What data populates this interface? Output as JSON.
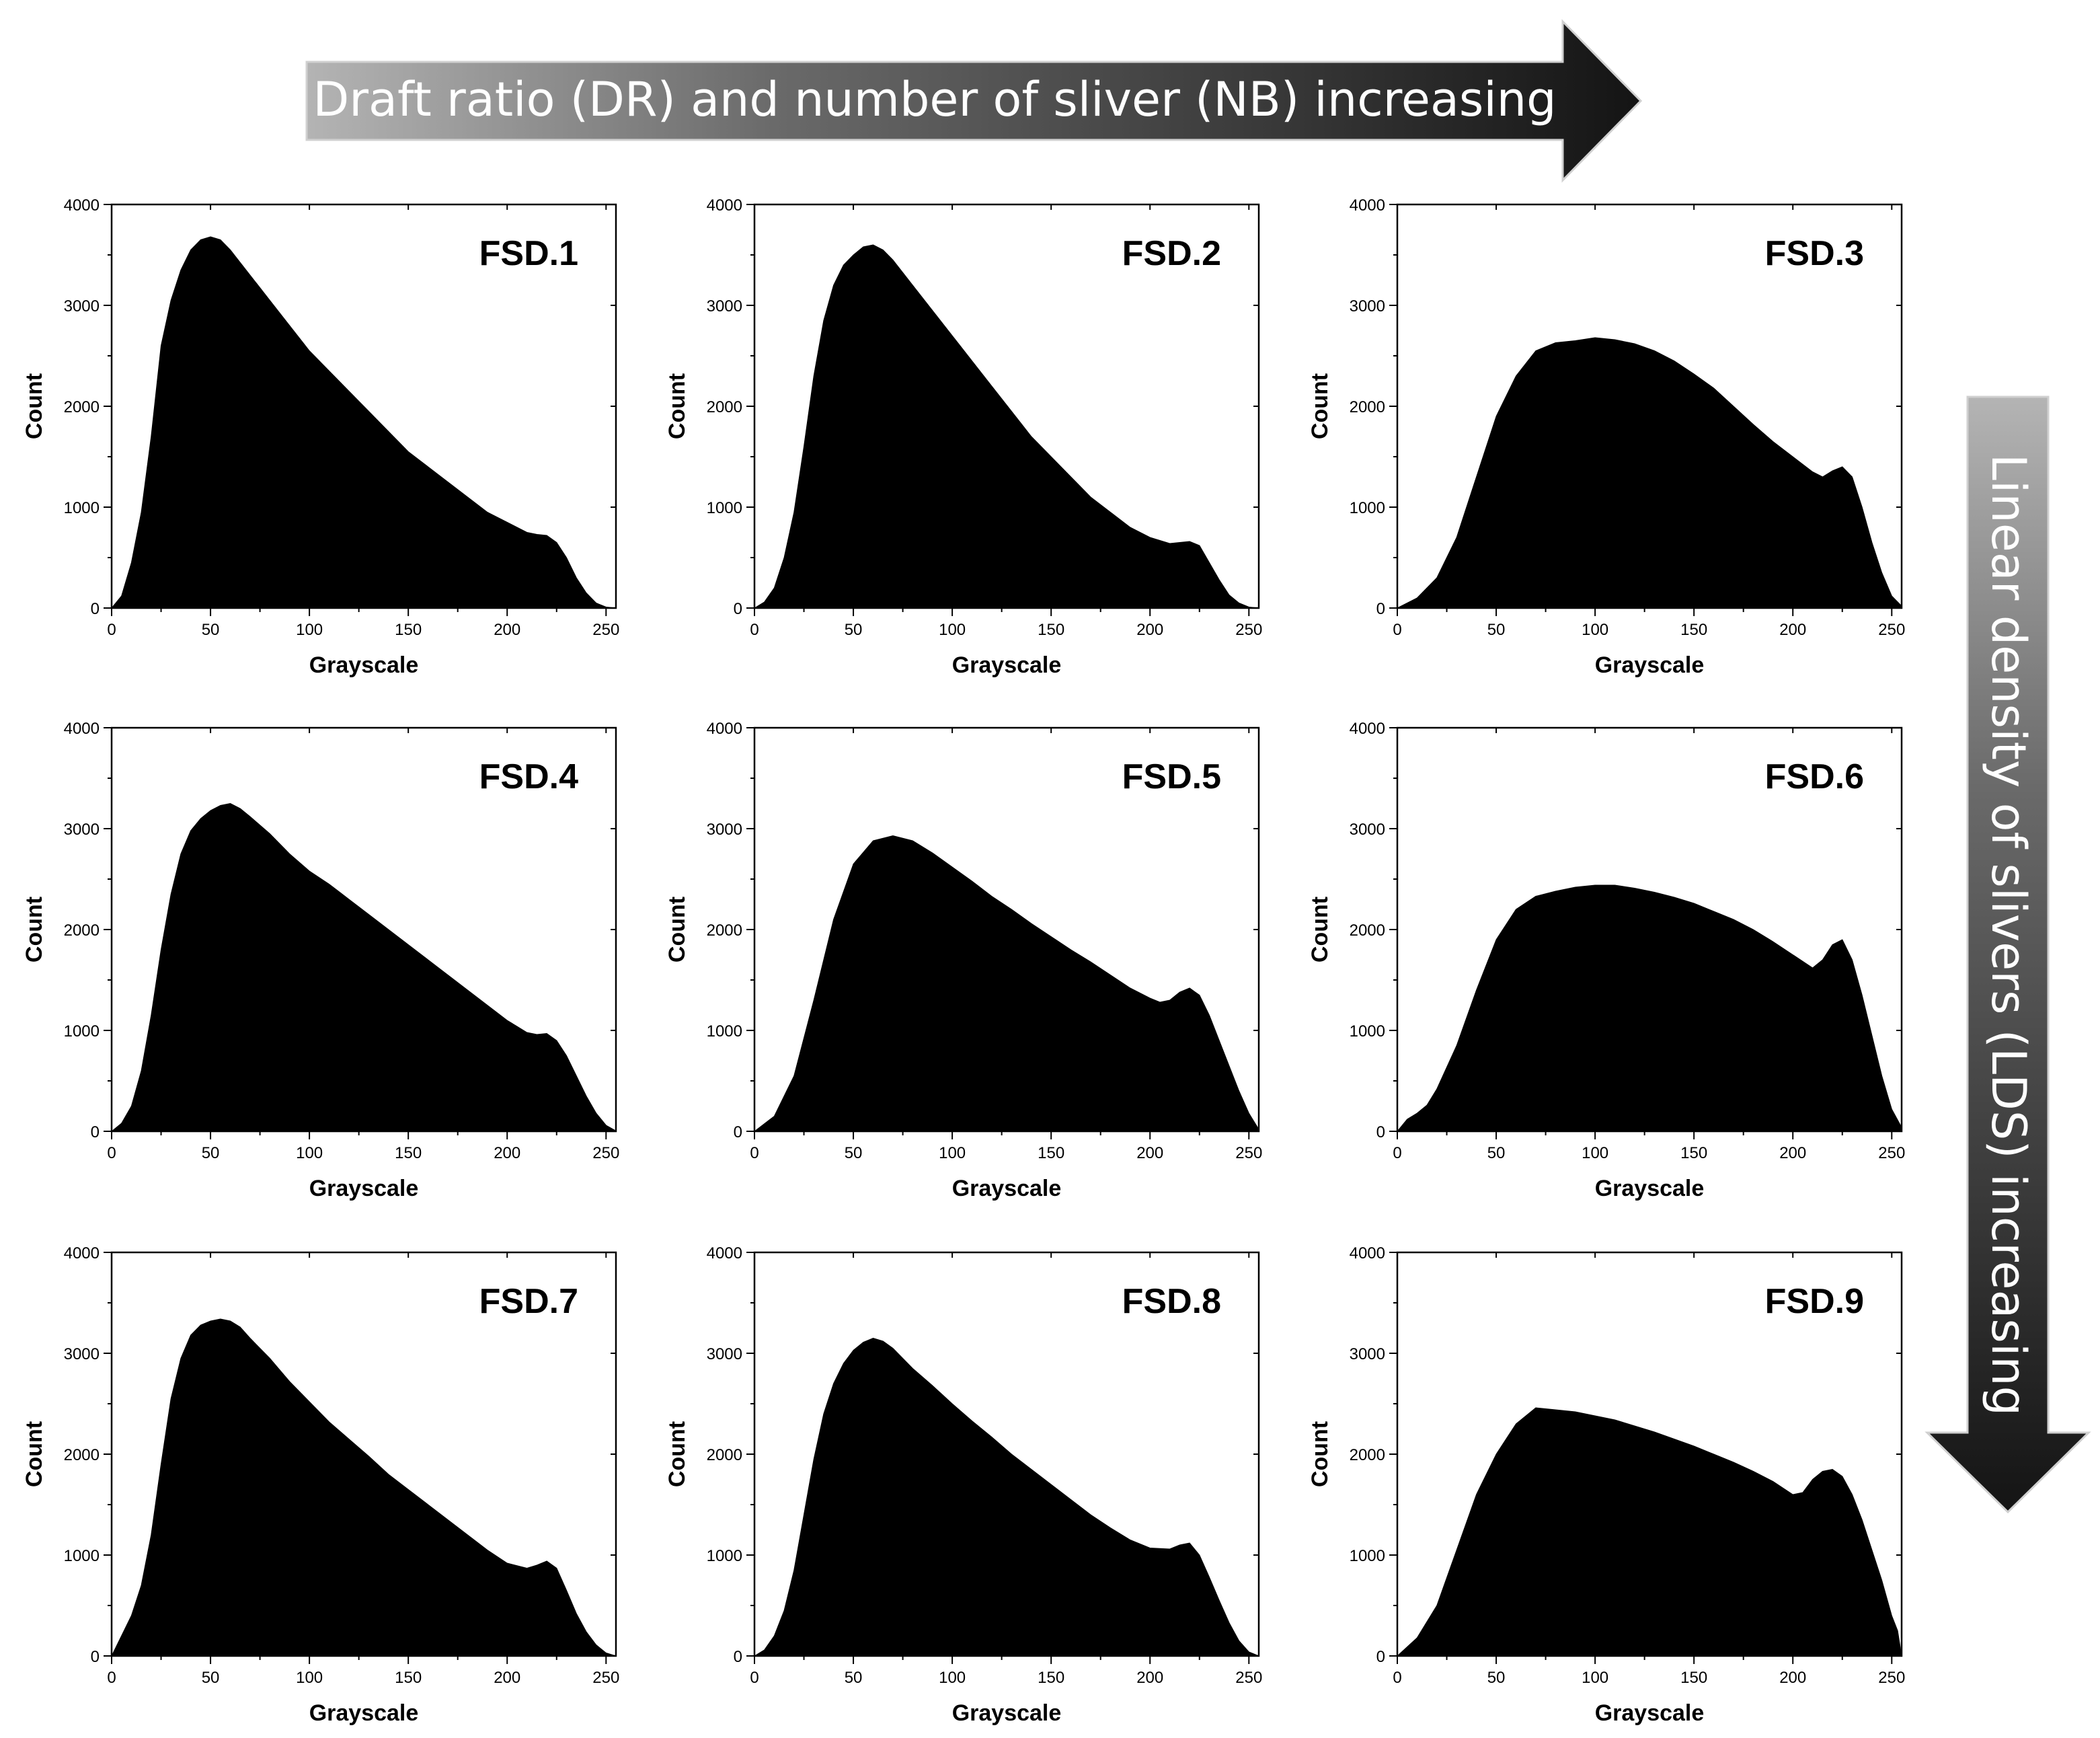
{
  "banner_top": {
    "text": "Draft ratio (DR) and number of sliver (NB) increasing"
  },
  "banner_right": {
    "text": "Linear density of slivers (LDS) increasing"
  },
  "colors": {
    "bars": "#000000",
    "arrow_dark": "#1a1a1a",
    "arrow_light": "#b4b4b4",
    "text": "#000000",
    "background": "#ffffff"
  },
  "chart_data": [
    {
      "type": "area",
      "title": "FSD.1",
      "xlabel": "Grayscale",
      "ylabel": "Count",
      "xlim": [
        0,
        255
      ],
      "ylim": [
        0,
        4000
      ],
      "xticks": [
        0,
        50,
        100,
        150,
        200,
        250
      ],
      "yticks": [
        0,
        1000,
        2000,
        3000,
        4000
      ],
      "grid": false,
      "x": [
        0,
        5,
        10,
        15,
        20,
        25,
        30,
        35,
        40,
        45,
        50,
        55,
        60,
        70,
        80,
        90,
        100,
        110,
        120,
        130,
        140,
        150,
        160,
        170,
        180,
        190,
        200,
        210,
        215,
        220,
        225,
        230,
        235,
        240,
        245,
        250,
        255
      ],
      "y": [
        0,
        120,
        450,
        950,
        1700,
        2600,
        3050,
        3350,
        3550,
        3650,
        3680,
        3650,
        3550,
        3300,
        3050,
        2800,
        2550,
        2350,
        2150,
        1950,
        1750,
        1550,
        1400,
        1250,
        1100,
        950,
        850,
        750,
        730,
        720,
        650,
        500,
        300,
        150,
        50,
        10,
        0
      ]
    },
    {
      "type": "area",
      "title": "FSD.2",
      "xlabel": "Grayscale",
      "ylabel": "Count",
      "xlim": [
        0,
        255
      ],
      "ylim": [
        0,
        4000
      ],
      "xticks": [
        0,
        50,
        100,
        150,
        200,
        250
      ],
      "yticks": [
        0,
        1000,
        2000,
        3000,
        4000
      ],
      "grid": false,
      "x": [
        0,
        5,
        10,
        15,
        20,
        25,
        30,
        35,
        40,
        45,
        50,
        55,
        60,
        65,
        70,
        80,
        90,
        100,
        110,
        120,
        130,
        140,
        150,
        160,
        170,
        180,
        190,
        200,
        210,
        220,
        225,
        230,
        235,
        240,
        245,
        250,
        255
      ],
      "y": [
        0,
        60,
        200,
        500,
        950,
        1600,
        2300,
        2850,
        3200,
        3400,
        3500,
        3580,
        3600,
        3550,
        3450,
        3200,
        2950,
        2700,
        2450,
        2200,
        1950,
        1700,
        1500,
        1300,
        1100,
        950,
        800,
        700,
        640,
        660,
        620,
        450,
        280,
        130,
        50,
        10,
        0
      ]
    },
    {
      "type": "area",
      "title": "FSD.3",
      "xlabel": "Grayscale",
      "ylabel": "Count",
      "xlim": [
        0,
        255
      ],
      "ylim": [
        0,
        4000
      ],
      "xticks": [
        0,
        50,
        100,
        150,
        200,
        250
      ],
      "yticks": [
        0,
        1000,
        2000,
        3000,
        4000
      ],
      "grid": false,
      "x": [
        0,
        10,
        20,
        30,
        40,
        50,
        60,
        70,
        80,
        90,
        100,
        110,
        120,
        130,
        140,
        150,
        160,
        170,
        180,
        190,
        200,
        210,
        215,
        220,
        225,
        230,
        235,
        240,
        245,
        250,
        255
      ],
      "y": [
        0,
        100,
        300,
        700,
        1300,
        1900,
        2300,
        2550,
        2630,
        2650,
        2680,
        2660,
        2620,
        2550,
        2450,
        2320,
        2180,
        2000,
        1820,
        1650,
        1500,
        1350,
        1300,
        1360,
        1400,
        1300,
        1000,
        650,
        350,
        120,
        20
      ]
    },
    {
      "type": "area",
      "title": "FSD.4",
      "xlabel": "Grayscale",
      "ylabel": "Count",
      "xlim": [
        0,
        255
      ],
      "ylim": [
        0,
        4000
      ],
      "xticks": [
        0,
        50,
        100,
        150,
        200,
        250
      ],
      "yticks": [
        0,
        1000,
        2000,
        3000,
        4000
      ],
      "grid": false,
      "x": [
        0,
        5,
        10,
        15,
        20,
        25,
        30,
        35,
        40,
        45,
        50,
        55,
        60,
        65,
        70,
        80,
        90,
        100,
        110,
        120,
        130,
        140,
        150,
        160,
        170,
        180,
        190,
        200,
        210,
        215,
        220,
        225,
        230,
        235,
        240,
        245,
        250,
        255
      ],
      "y": [
        0,
        80,
        250,
        600,
        1150,
        1800,
        2350,
        2750,
        2980,
        3100,
        3180,
        3230,
        3250,
        3200,
        3120,
        2950,
        2750,
        2580,
        2450,
        2300,
        2150,
        2000,
        1850,
        1700,
        1550,
        1400,
        1250,
        1100,
        980,
        960,
        970,
        900,
        750,
        550,
        350,
        180,
        60,
        5
      ]
    },
    {
      "type": "area",
      "title": "FSD.5",
      "xlabel": "Grayscale",
      "ylabel": "Count",
      "xlim": [
        0,
        255
      ],
      "ylim": [
        0,
        4000
      ],
      "xticks": [
        0,
        50,
        100,
        150,
        200,
        250
      ],
      "yticks": [
        0,
        1000,
        2000,
        3000,
        4000
      ],
      "grid": false,
      "x": [
        0,
        10,
        20,
        30,
        40,
        50,
        60,
        70,
        80,
        90,
        100,
        110,
        120,
        130,
        140,
        150,
        160,
        170,
        180,
        190,
        200,
        205,
        210,
        215,
        220,
        225,
        230,
        235,
        240,
        245,
        250,
        255
      ],
      "y": [
        0,
        150,
        550,
        1300,
        2100,
        2650,
        2880,
        2930,
        2880,
        2760,
        2620,
        2480,
        2330,
        2200,
        2060,
        1930,
        1800,
        1680,
        1550,
        1420,
        1320,
        1280,
        1300,
        1380,
        1420,
        1350,
        1150,
        900,
        650,
        400,
        180,
        20
      ]
    },
    {
      "type": "area",
      "title": "FSD.6",
      "xlabel": "Grayscale",
      "ylabel": "Count",
      "xlim": [
        0,
        255
      ],
      "ylim": [
        0,
        4000
      ],
      "xticks": [
        0,
        50,
        100,
        150,
        200,
        250
      ],
      "yticks": [
        0,
        1000,
        2000,
        3000,
        4000
      ],
      "grid": false,
      "x": [
        0,
        5,
        10,
        15,
        20,
        30,
        40,
        50,
        60,
        70,
        80,
        90,
        100,
        110,
        120,
        130,
        140,
        150,
        160,
        170,
        180,
        190,
        200,
        210,
        215,
        220,
        225,
        230,
        235,
        240,
        245,
        250,
        255
      ],
      "y": [
        0,
        120,
        180,
        260,
        420,
        850,
        1400,
        1900,
        2200,
        2330,
        2380,
        2420,
        2440,
        2440,
        2410,
        2370,
        2320,
        2260,
        2180,
        2100,
        2000,
        1880,
        1750,
        1620,
        1700,
        1850,
        1900,
        1700,
        1350,
        950,
        550,
        220,
        40
      ]
    },
    {
      "type": "area",
      "title": "FSD.7",
      "xlabel": "Grayscale",
      "ylabel": "Count",
      "xlim": [
        0,
        255
      ],
      "ylim": [
        0,
        4000
      ],
      "xticks": [
        0,
        50,
        100,
        150,
        200,
        250
      ],
      "yticks": [
        0,
        1000,
        2000,
        3000,
        4000
      ],
      "grid": false,
      "x": [
        0,
        5,
        10,
        15,
        20,
        25,
        30,
        35,
        40,
        45,
        50,
        55,
        60,
        65,
        70,
        80,
        90,
        100,
        110,
        120,
        130,
        140,
        150,
        160,
        170,
        180,
        190,
        200,
        210,
        215,
        220,
        225,
        230,
        235,
        240,
        245,
        250,
        255
      ],
      "y": [
        0,
        200,
        400,
        700,
        1200,
        1900,
        2550,
        2950,
        3180,
        3280,
        3320,
        3340,
        3320,
        3260,
        3150,
        2950,
        2720,
        2520,
        2320,
        2150,
        1980,
        1800,
        1650,
        1500,
        1350,
        1200,
        1050,
        920,
        870,
        900,
        940,
        870,
        650,
        420,
        240,
        110,
        30,
        0
      ]
    },
    {
      "type": "area",
      "title": "FSD.8",
      "xlabel": "Grayscale",
      "ylabel": "Count",
      "xlim": [
        0,
        255
      ],
      "ylim": [
        0,
        4000
      ],
      "xticks": [
        0,
        50,
        100,
        150,
        200,
        250
      ],
      "yticks": [
        0,
        1000,
        2000,
        3000,
        4000
      ],
      "grid": false,
      "x": [
        0,
        5,
        10,
        15,
        20,
        25,
        30,
        35,
        40,
        45,
        50,
        55,
        60,
        65,
        70,
        80,
        90,
        100,
        110,
        120,
        130,
        140,
        150,
        160,
        170,
        180,
        190,
        200,
        210,
        215,
        220,
        225,
        230,
        235,
        240,
        245,
        250,
        255
      ],
      "y": [
        0,
        60,
        200,
        450,
        850,
        1400,
        1950,
        2400,
        2700,
        2900,
        3030,
        3110,
        3150,
        3120,
        3050,
        2850,
        2680,
        2500,
        2330,
        2170,
        2000,
        1850,
        1700,
        1550,
        1400,
        1270,
        1150,
        1070,
        1060,
        1100,
        1120,
        1000,
        780,
        550,
        330,
        150,
        40,
        0
      ]
    },
    {
      "type": "area",
      "title": "FSD.9",
      "xlabel": "Grayscale",
      "ylabel": "Count",
      "xlim": [
        0,
        255
      ],
      "ylim": [
        0,
        4000
      ],
      "xticks": [
        0,
        50,
        100,
        150,
        200,
        250
      ],
      "yticks": [
        0,
        1000,
        2000,
        3000,
        4000
      ],
      "grid": false,
      "x": [
        0,
        10,
        20,
        30,
        40,
        50,
        60,
        70,
        80,
        90,
        100,
        110,
        120,
        130,
        140,
        150,
        160,
        170,
        180,
        190,
        200,
        205,
        210,
        215,
        220,
        225,
        230,
        235,
        240,
        245,
        250,
        253,
        255
      ],
      "y": [
        0,
        180,
        500,
        1050,
        1600,
        2000,
        2300,
        2460,
        2440,
        2420,
        2380,
        2340,
        2280,
        2220,
        2150,
        2080,
        2000,
        1920,
        1830,
        1730,
        1600,
        1620,
        1750,
        1830,
        1850,
        1780,
        1600,
        1350,
        1050,
        750,
        400,
        250,
        0
      ]
    }
  ]
}
